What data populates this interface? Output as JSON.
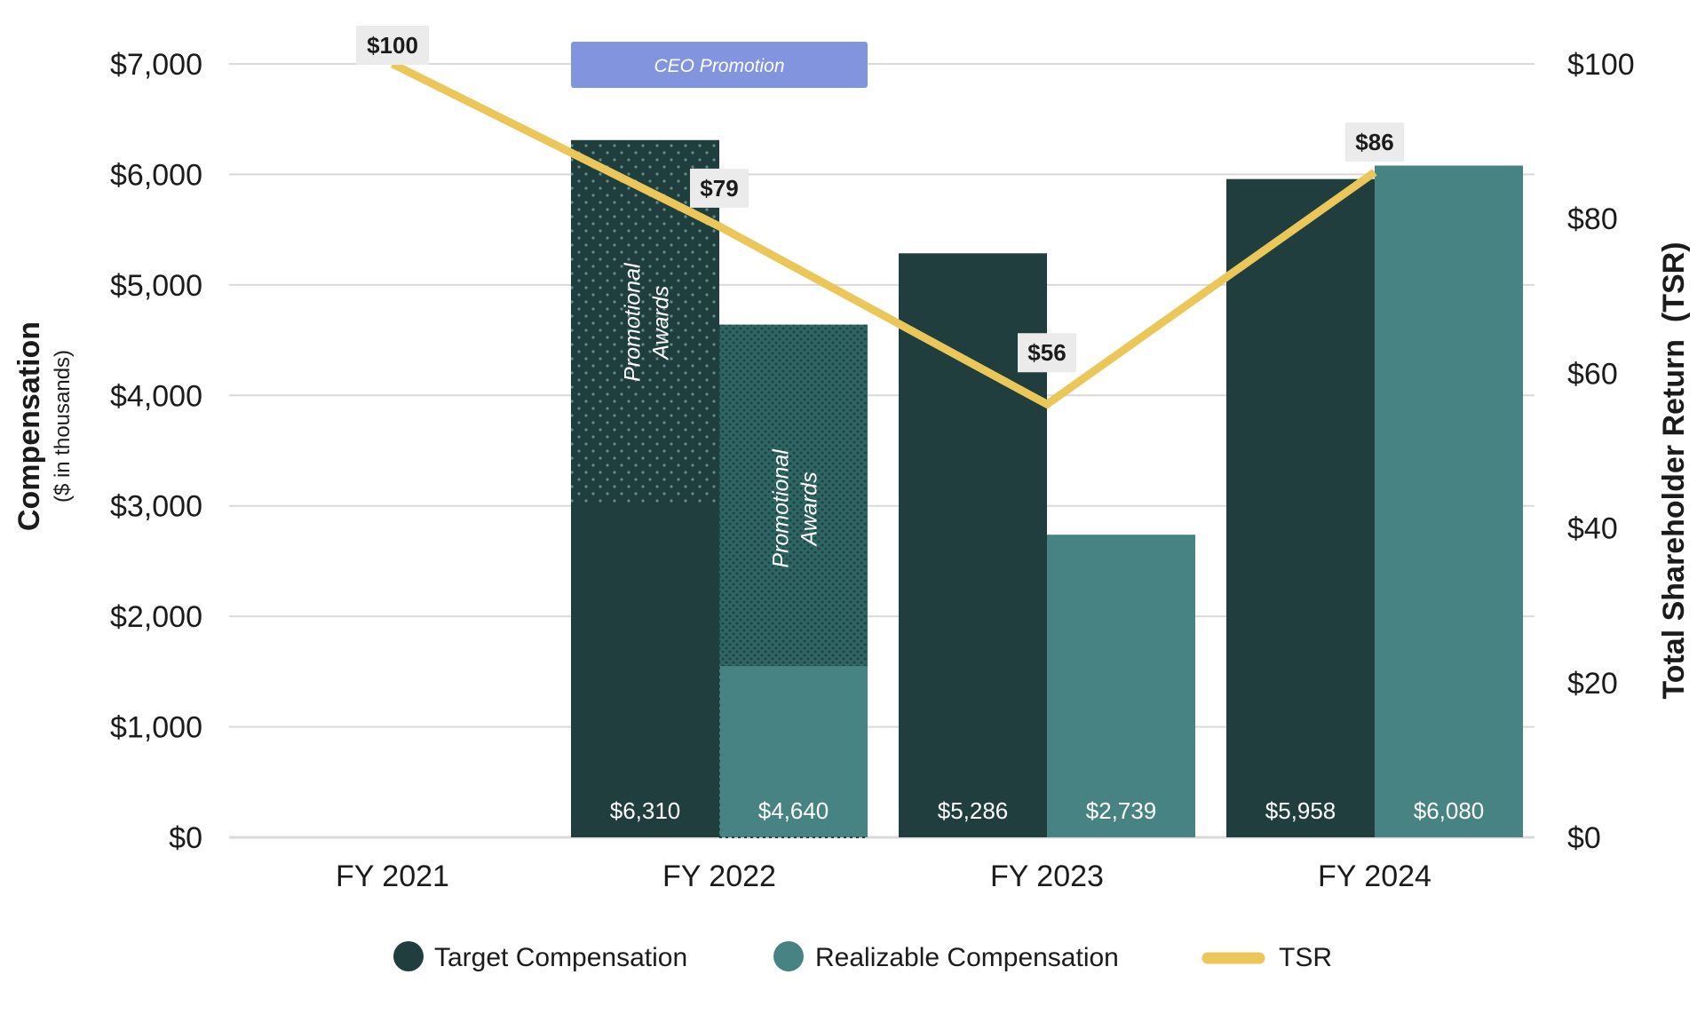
{
  "chart_data": {
    "type": "bar",
    "categories": [
      "FY 2021",
      "FY 2022",
      "FY 2023",
      "FY 2024"
    ],
    "y_left": {
      "title": "Compensation",
      "subtitle": "($ in thousands)",
      "range": [
        0,
        7000
      ],
      "ticks": [
        0,
        1000,
        2000,
        3000,
        4000,
        5000,
        6000,
        7000
      ],
      "tick_labels": [
        "$0",
        "$1,000",
        "$2,000",
        "$3,000",
        "$4,000",
        "$5,000",
        "$6,000",
        "$7,000"
      ]
    },
    "y_right": {
      "title": "Total Shareholder Return  (TSR)",
      "range": [
        0,
        100
      ],
      "ticks": [
        0,
        20,
        40,
        60,
        80,
        100
      ],
      "tick_labels": [
        "$0",
        "$20",
        "$40",
        "$60",
        "$80",
        "$100"
      ]
    },
    "grid": true,
    "series": [
      {
        "name": "Target Compensation",
        "color": "#213e3f",
        "values": [
          null,
          6310,
          5286,
          5958
        ],
        "value_labels": [
          "",
          "$6,310",
          "$5,286",
          "$5,958"
        ],
        "promotional_portion": [
          null,
          3300,
          null,
          null
        ]
      },
      {
        "name": "Realizable Compensation",
        "color": "#478382",
        "values": [
          null,
          4640,
          2739,
          6080
        ],
        "value_labels": [
          "",
          "$4,640",
          "$2,739",
          "$6,080"
        ],
        "promotional_portion": [
          null,
          3090,
          null,
          null
        ]
      },
      {
        "name": "TSR",
        "type": "line",
        "axis": "right",
        "color": "#ebc75a",
        "values": [
          100,
          79,
          56,
          86
        ],
        "value_labels": [
          "$100",
          "$79",
          "$56",
          "$86"
        ]
      }
    ],
    "annotations": {
      "promotional_label_line1": "Promotional",
      "promotional_label_line2": "Awards",
      "banner": "CEO Promotion",
      "banner_color": "#8194dd"
    },
    "legend_position": "bottom"
  }
}
